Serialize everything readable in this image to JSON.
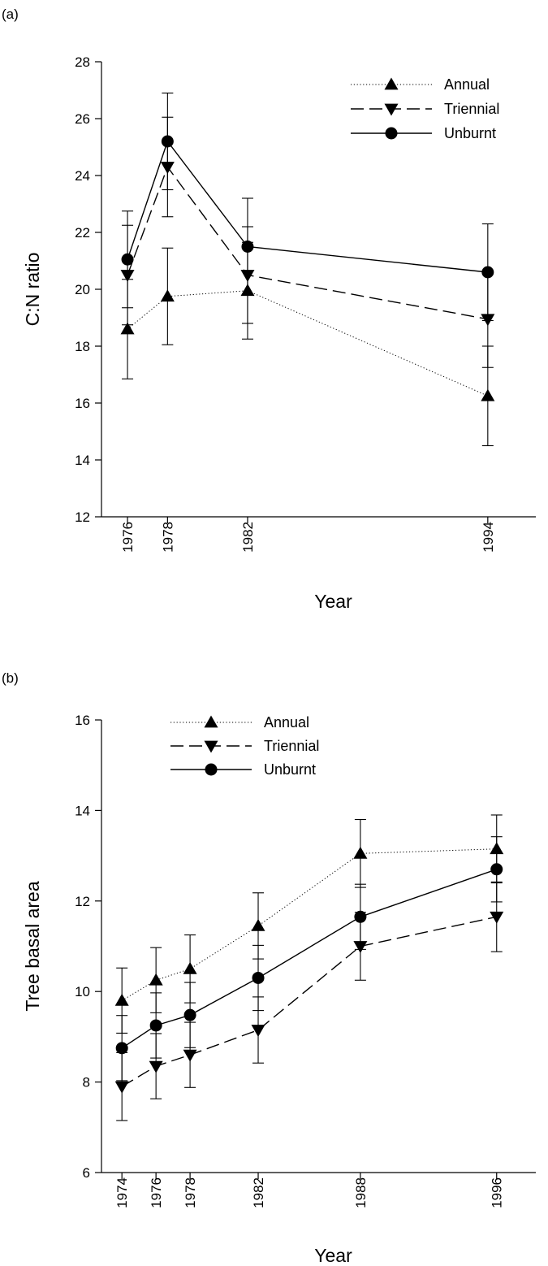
{
  "chart_data": [
    {
      "panel": "(a)",
      "type": "line",
      "xlabel": "Year",
      "ylabel": "C:N ratio",
      "ylim": [
        12,
        28
      ],
      "yticks": [
        12,
        14,
        16,
        18,
        20,
        22,
        24,
        26,
        28
      ],
      "xticks": [
        1976,
        1978,
        1982,
        1994
      ],
      "xlim": [
        1974.7,
        1996.4
      ],
      "legend_position": "top-right",
      "series": [
        {
          "name": "Annual",
          "marker": "triangle-up",
          "line": "dotted",
          "x": [
            1976,
            1978,
            1982,
            1994
          ],
          "y": [
            18.6,
            19.75,
            19.95,
            16.25
          ],
          "err": [
            1.75,
            1.7,
            1.7,
            1.75
          ]
        },
        {
          "name": "Triennial",
          "marker": "triangle-down",
          "line": "dashed",
          "x": [
            1976,
            1978,
            1982,
            1994
          ],
          "y": [
            20.5,
            24.3,
            20.5,
            18.95
          ],
          "err": [
            1.75,
            1.75,
            1.7,
            1.7
          ]
        },
        {
          "name": "Unburnt",
          "marker": "circle",
          "line": "solid",
          "x": [
            1976,
            1978,
            1982,
            1994
          ],
          "y": [
            21.05,
            25.2,
            21.5,
            20.6
          ],
          "err": [
            1.7,
            1.7,
            1.7,
            1.7
          ]
        }
      ]
    },
    {
      "panel": "(b)",
      "type": "line",
      "xlabel": "Year",
      "ylabel": "Tree basal area",
      "ylim": [
        6,
        16
      ],
      "yticks": [
        6,
        8,
        10,
        12,
        14,
        16
      ],
      "xticks": [
        1974,
        1976,
        1978,
        1982,
        1988,
        1996
      ],
      "xlim": [
        1972.8,
        1998.3
      ],
      "legend_position": "top-left",
      "series": [
        {
          "name": "Annual",
          "marker": "triangle-up",
          "line": "dotted",
          "x": [
            1974,
            1976,
            1978,
            1982,
            1988,
            1996
          ],
          "y": [
            9.8,
            10.25,
            10.5,
            11.45,
            13.05,
            13.15
          ],
          "err": [
            0.72,
            0.72,
            0.75,
            0.73,
            0.75,
            0.75
          ]
        },
        {
          "name": "Triennial",
          "marker": "triangle-down",
          "line": "dashed",
          "x": [
            1974,
            1976,
            1978,
            1982,
            1988,
            1996
          ],
          "y": [
            7.9,
            8.35,
            8.6,
            9.15,
            11.0,
            11.65
          ],
          "err": [
            0.75,
            0.72,
            0.72,
            0.73,
            0.75,
            0.77
          ]
        },
        {
          "name": "Unburnt",
          "marker": "circle",
          "line": "solid",
          "x": [
            1974,
            1976,
            1978,
            1982,
            1988,
            1996
          ],
          "y": [
            8.75,
            9.25,
            9.48,
            10.3,
            11.65,
            12.7
          ],
          "err": [
            0.72,
            0.72,
            0.72,
            0.72,
            0.72,
            0.72
          ]
        }
      ]
    }
  ]
}
